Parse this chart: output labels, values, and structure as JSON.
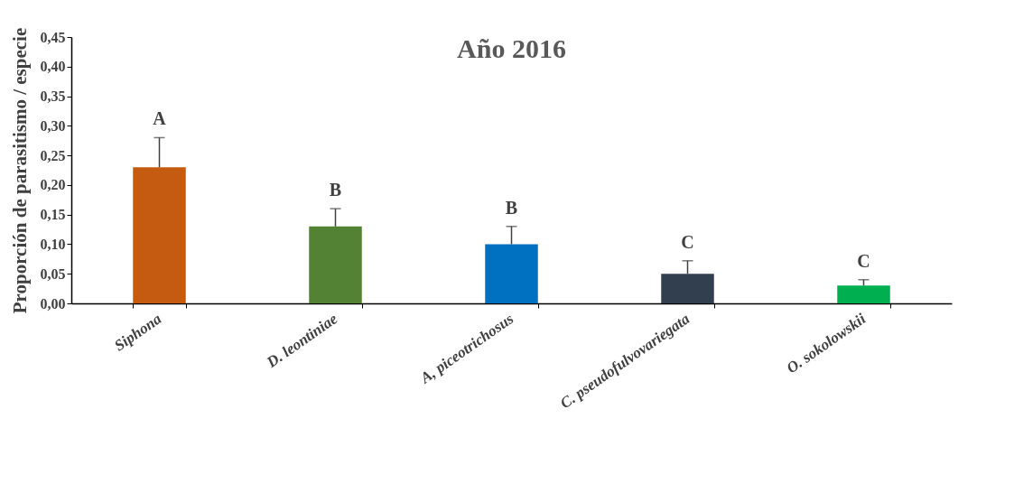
{
  "chart_data": {
    "type": "bar",
    "title": "Año 2016",
    "ylabel": "Proporción de parasitismo / especie",
    "categories": [
      "Siphona",
      "D. leontiniae",
      "A, piceotrichosus",
      "C. pseudofulvovariegata",
      "O. sokolowskii"
    ],
    "values": [
      0.23,
      0.13,
      0.1,
      0.05,
      0.03
    ],
    "colors": [
      "#c55a11",
      "#548235",
      "#0070c0",
      "#323f4f",
      "#00b050"
    ],
    "errors": [
      [
        0.23,
        0.28
      ],
      [
        0.13,
        0.16
      ],
      [
        0.1,
        0.13
      ],
      [
        0.05,
        0.072
      ],
      [
        0.03,
        0.04
      ]
    ],
    "ylim": [
      0,
      0.45
    ],
    "yticks": [
      {
        "value": 0,
        "label": "0,00"
      },
      {
        "value": 0.05,
        "label": "0,05"
      },
      {
        "value": 0.1,
        "label": "0,10"
      },
      {
        "value": 0.15,
        "label": "0,15"
      },
      {
        "value": 0.2,
        "label": "0,20"
      },
      {
        "value": 0.25,
        "label": "0,25"
      },
      {
        "value": 0.3,
        "label": "0,30"
      },
      {
        "value": 0.35,
        "label": "0,35"
      },
      {
        "value": 0.4,
        "label": "0,40"
      },
      {
        "value": 0.45,
        "label": "0,45"
      }
    ],
    "annotations": [
      "A",
      "B",
      "B",
      "C",
      "C"
    ],
    "grid": false
  }
}
